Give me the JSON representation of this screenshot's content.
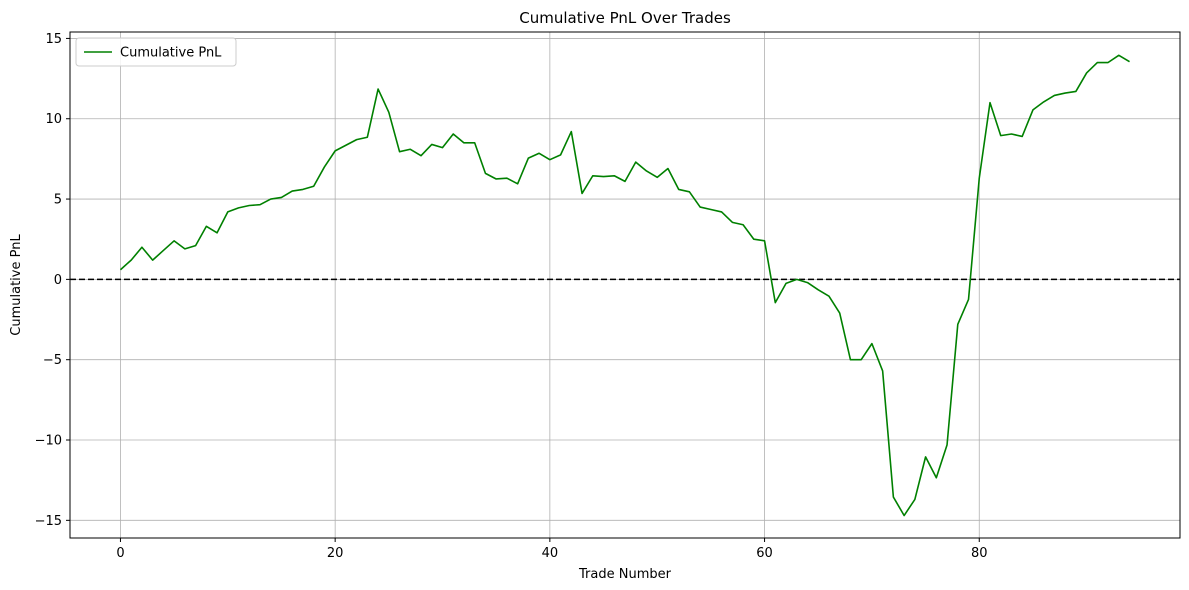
{
  "chart_data": {
    "type": "line",
    "title": "Cumulative PnL Over Trades",
    "xlabel": "Trade Number",
    "ylabel": "Cumulative PnL",
    "xlim": [
      -4.7,
      98.7
    ],
    "ylim": [
      -16.1,
      15.4
    ],
    "xticks": [
      0,
      20,
      40,
      60,
      80
    ],
    "yticks": [
      -15,
      -10,
      -5,
      0,
      5,
      10,
      15
    ],
    "xtick_labels": [
      "0",
      "20",
      "40",
      "60",
      "80"
    ],
    "ytick_labels": [
      "−15",
      "−10",
      "−5",
      "0",
      "5",
      "10",
      "15"
    ],
    "grid": true,
    "legend": {
      "position": "upper left"
    },
    "reference_line": {
      "y": 0,
      "style": "dashed",
      "color": "#000000"
    },
    "series": [
      {
        "name": "Cumulative PnL",
        "color": "#008000",
        "x": [
          0,
          1,
          2,
          3,
          4,
          5,
          6,
          7,
          8,
          9,
          10,
          11,
          12,
          13,
          14,
          15,
          16,
          17,
          18,
          19,
          20,
          21,
          22,
          23,
          24,
          25,
          26,
          27,
          28,
          29,
          30,
          31,
          32,
          33,
          34,
          35,
          36,
          37,
          38,
          39,
          40,
          41,
          42,
          43,
          44,
          45,
          46,
          47,
          48,
          49,
          50,
          51,
          52,
          53,
          54,
          55,
          56,
          57,
          58,
          59,
          60,
          61,
          62,
          63,
          64,
          65,
          66,
          67,
          68,
          69,
          70,
          71,
          72,
          73,
          74,
          75,
          76,
          77,
          78,
          79,
          80,
          81,
          82,
          83,
          84,
          85,
          86,
          87,
          88,
          89,
          90,
          91,
          92,
          93,
          94
        ],
        "values": [
          0.6,
          1.2,
          2.0,
          1.2,
          1.8,
          2.4,
          1.9,
          2.1,
          3.3,
          2.9,
          4.2,
          4.45,
          4.6,
          4.65,
          5.0,
          5.1,
          5.5,
          5.6,
          5.8,
          7.0,
          8.0,
          8.35,
          8.7,
          8.85,
          11.85,
          10.4,
          7.95,
          8.1,
          7.7,
          8.4,
          8.2,
          9.05,
          8.5,
          8.5,
          6.6,
          6.25,
          6.3,
          5.95,
          7.55,
          7.85,
          7.45,
          7.75,
          9.2,
          5.35,
          6.45,
          6.4,
          6.45,
          6.1,
          7.3,
          6.75,
          6.35,
          6.9,
          5.6,
          5.45,
          4.5,
          4.35,
          4.2,
          3.55,
          3.4,
          2.5,
          2.4,
          -1.45,
          -0.25,
          0.0,
          -0.2,
          -0.65,
          -1.05,
          -2.1,
          -5.0,
          -5.0,
          -4.0,
          -5.7,
          -13.55,
          -14.7,
          -13.7,
          -11.05,
          -12.35,
          -10.3,
          -2.8,
          -1.25,
          6.3,
          11.0,
          8.95,
          9.05,
          8.9,
          10.55,
          11.05,
          11.45,
          11.6,
          11.7,
          12.85,
          13.5,
          13.5,
          13.95,
          13.55
        ]
      }
    ]
  }
}
